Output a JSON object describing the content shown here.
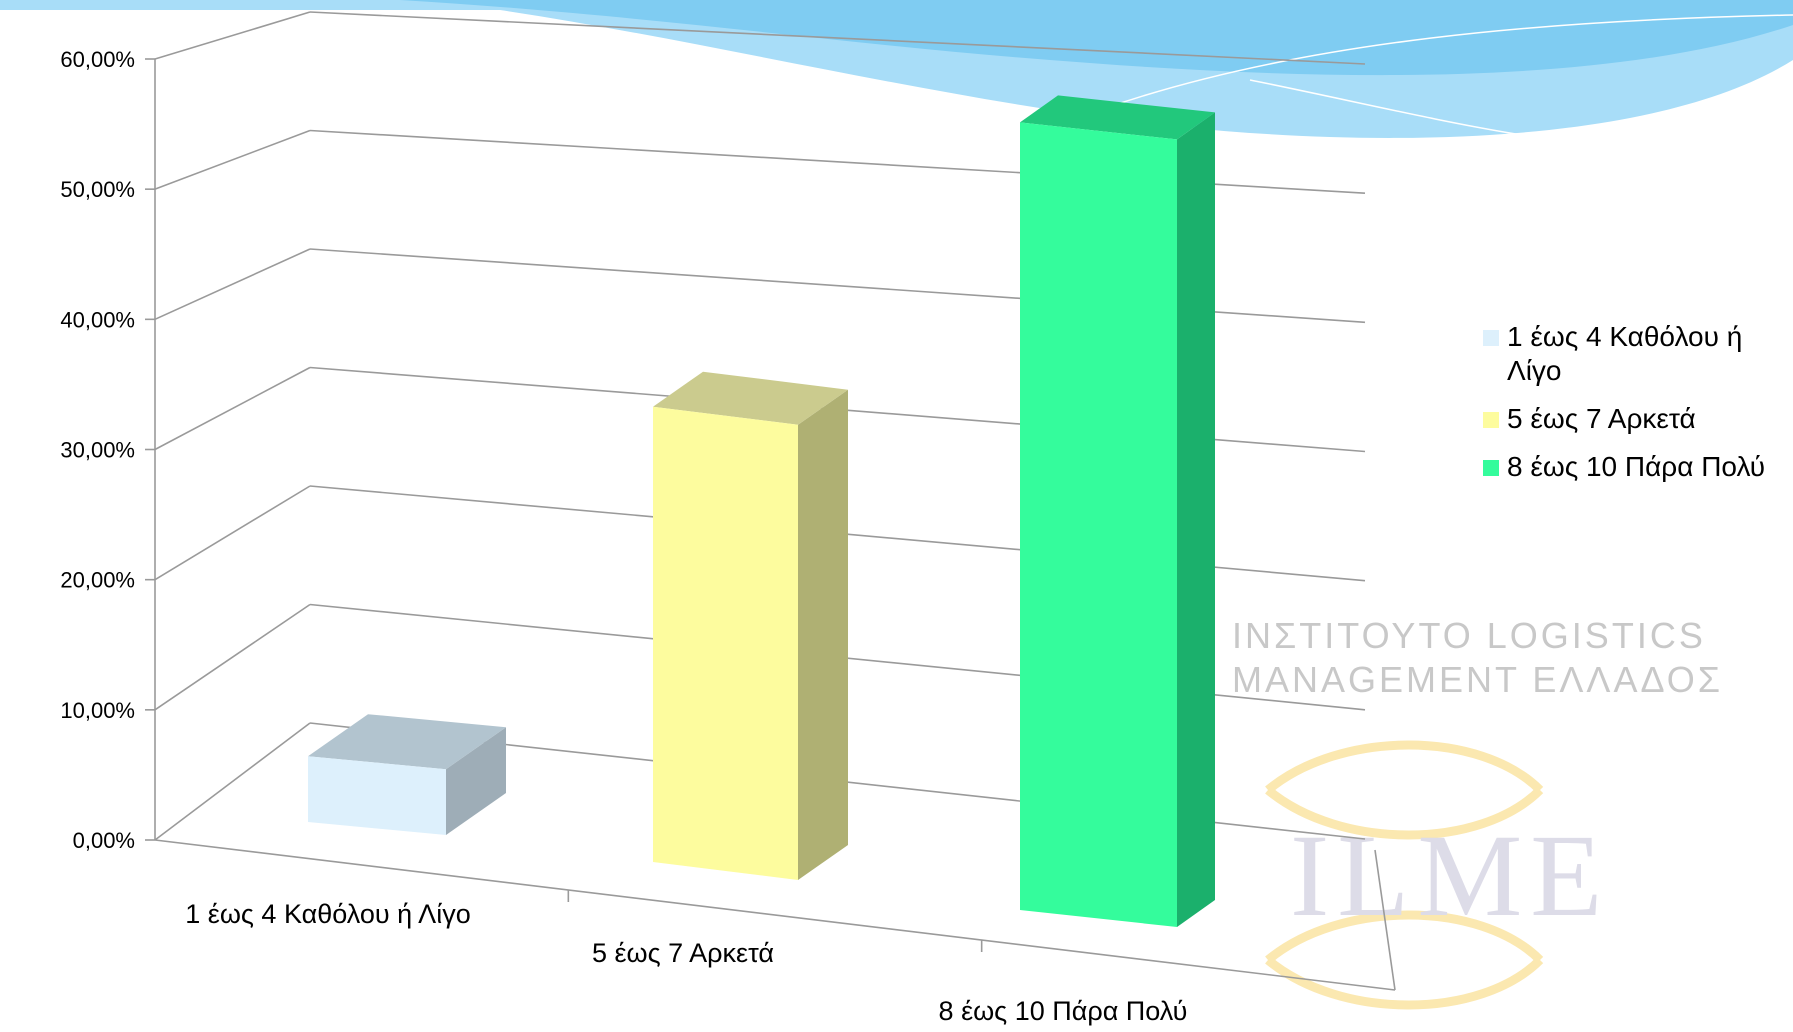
{
  "chart_data": {
    "type": "bar",
    "subtype": "3d-column",
    "categories": [
      "1 έως 4 Καθόλου ή Λίγο",
      "5 έως 7 Αρκετά",
      "8 έως 10 Πάρα Πολύ"
    ],
    "values": [
      5.5,
      36.0,
      58.5
    ],
    "unit": "%",
    "ylim": [
      0,
      60
    ],
    "yticks": [
      "0,00%",
      "10,00%",
      "20,00%",
      "30,00%",
      "40,00%",
      "50,00%",
      "60,00%"
    ],
    "grid": true,
    "legend_position": "right",
    "legend": [
      "1 έως 4 Καθόλου ή Λίγο",
      "5 έως 7 Αρκετά",
      "8 έως 10 Πάρα Πολύ"
    ],
    "colors": [
      {
        "front": "#ddf0fc",
        "side": "#9eadb7",
        "top": "#b2c4cf"
      },
      {
        "front": "#fdfc9e",
        "side": "#afb073",
        "top": "#cbcb8e"
      },
      {
        "front": "#34fc9c",
        "side": "#1bb06c",
        "top": "#22c87c"
      }
    ]
  },
  "watermark": {
    "line1": "ΙΝΣΤΙΤΟΥΤΟ LOGISTICS",
    "line2": "MANAGEMENT ΕΛΛΑΔΟΣ",
    "logo": "ILME"
  },
  "decoration": {
    "wave_color": "#8fd3f5"
  }
}
